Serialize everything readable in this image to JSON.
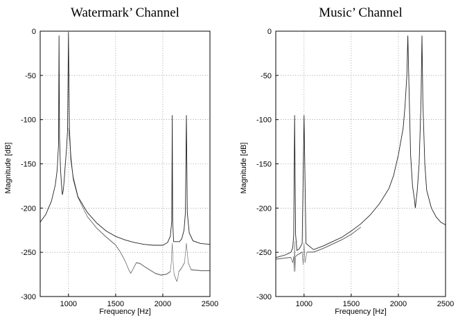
{
  "chart_data": [
    {
      "type": "line",
      "title": "Watermark’ Channel",
      "xlabel": "Frequency [Hz]",
      "ylabel": "Magnitude [dB]",
      "xlim": [
        700,
        2500
      ],
      "ylim": [
        -300,
        0
      ],
      "xticks": [
        1000,
        1500,
        2000,
        2500
      ],
      "xtick_labels": [
        "1000",
        "1500",
        "2000",
        "2500"
      ],
      "yticks": [
        0,
        -50,
        -100,
        -150,
        -200,
        -250,
        -300
      ],
      "ytick_labels": [
        "0",
        "-50",
        "-100",
        "-150",
        "-200",
        "-250",
        "-300"
      ],
      "grid": true,
      "series": [
        {
          "style": "line",
          "x": [
            700,
            760,
            820,
            860,
            880,
            895,
            900,
            905,
            915,
            925,
            935,
            945,
            955,
            965,
            980,
            990,
            1000,
            1010,
            1025,
            1050,
            1100,
            1200,
            1300,
            1400,
            1500,
            1600,
            1700,
            1800,
            1900,
            2000,
            2050,
            2080,
            2095,
            2100,
            2105,
            2115,
            2130,
            2150,
            2175,
            2200,
            2225,
            2240,
            2250,
            2260,
            2280,
            2320,
            2400,
            2500
          ],
          "y": [
            -216,
            -207,
            -192,
            -174,
            -157,
            -128,
            -5,
            -120,
            -155,
            -172,
            -185,
            -180,
            -168,
            -152,
            -132,
            -112,
            -1,
            -110,
            -145,
            -165,
            -187,
            -205,
            -217,
            -226,
            -232,
            -236,
            -239,
            -241,
            -242,
            -242,
            -239,
            -232,
            -215,
            -95,
            -215,
            -238,
            -238,
            -238,
            -238,
            -235,
            -225,
            -205,
            -95,
            -205,
            -228,
            -237,
            -240,
            -241
          ]
        },
        {
          "style": "band-lower",
          "x": [
            1000,
            1050,
            1100,
            1200,
            1300,
            1400,
            1500,
            1550,
            1600,
            1640,
            1660,
            1690,
            1720,
            1760,
            1800,
            1860,
            1920,
            1980,
            2040,
            2080,
            2090,
            2100,
            2110,
            2120,
            2140,
            2150,
            2160,
            2170,
            2200,
            2230,
            2250,
            2270,
            2300,
            2400,
            2500
          ],
          "y": [
            -110,
            -168,
            -188,
            -210,
            -223,
            -233,
            -242,
            -250,
            -260,
            -270,
            -274,
            -268,
            -262,
            -263,
            -266,
            -270,
            -274,
            -276,
            -275,
            -272,
            -262,
            -240,
            -262,
            -275,
            -281,
            -283,
            -279,
            -272,
            -268,
            -262,
            -240,
            -262,
            -270,
            -271,
            -271
          ]
        }
      ]
    },
    {
      "type": "line",
      "title": "Music’ Channel",
      "xlabel": "Frequency [Hz]",
      "ylabel": "Magnitude [dB]",
      "xlim": [
        700,
        2500
      ],
      "ylim": [
        -300,
        0
      ],
      "xticks": [
        1000,
        1500,
        2000,
        2500
      ],
      "xtick_labels": [
        "1000",
        "1500",
        "2000",
        "2500"
      ],
      "yticks": [
        0,
        -50,
        -100,
        -150,
        -200,
        -250,
        -300
      ],
      "ytick_labels": [
        "0",
        "-50",
        "-100",
        "-150",
        "-200",
        "-250",
        "-300"
      ],
      "grid": true,
      "series": [
        {
          "style": "line",
          "x": [
            700,
            800,
            860,
            880,
            890,
            900,
            910,
            925,
            950,
            980,
            1000,
            1020,
            1100,
            1200,
            1300,
            1400,
            1500,
            1600,
            1700,
            1800,
            1900,
            1950,
            2000,
            2050,
            2070,
            2090,
            2100,
            2110,
            2130,
            2150,
            2170,
            2180,
            2200,
            2220,
            2240,
            2250,
            2260,
            2280,
            2300,
            2350,
            2400,
            2450,
            2500
          ],
          "y": [
            -256,
            -253,
            -250,
            -245,
            -230,
            -95,
            -230,
            -248,
            -246,
            -240,
            -95,
            -240,
            -247,
            -243,
            -238,
            -233,
            -226,
            -218,
            -208,
            -195,
            -178,
            -163,
            -140,
            -110,
            -85,
            -50,
            -5,
            -50,
            -140,
            -175,
            -190,
            -200,
            -180,
            -150,
            -80,
            -5,
            -80,
            -150,
            -180,
            -200,
            -210,
            -216,
            -219
          ]
        },
        {
          "style": "band-lower",
          "x": [
            700,
            780,
            860,
            880,
            890,
            895,
            900,
            905,
            910,
            930,
            950,
            980,
            990,
            1000,
            1010,
            1030,
            1100,
            1200,
            1300,
            1400,
            1500,
            1600
          ],
          "y": [
            -258,
            -257,
            -256,
            -262,
            -255,
            -272,
            -238,
            -272,
            -255,
            -253,
            -252,
            -250,
            -264,
            -240,
            -262,
            -250,
            -250,
            -246,
            -241,
            -236,
            -230,
            -222
          ]
        }
      ]
    }
  ]
}
